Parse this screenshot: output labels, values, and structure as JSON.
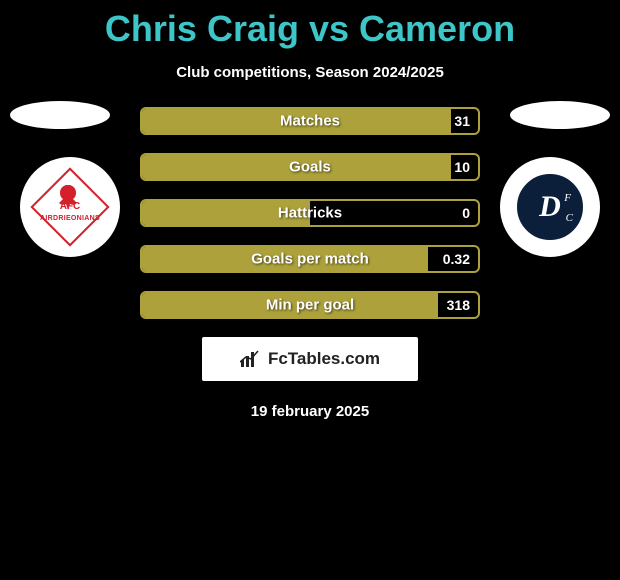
{
  "title": "Chris Craig vs Cameron",
  "subtitle": "Club competitions, Season 2024/2025",
  "date": "19 february 2025",
  "watermark": "FcTables.com",
  "colors": {
    "title": "#3ec5c7",
    "bar_fill": "#aca13a",
    "bar_border": "#aca13a",
    "background": "#000000",
    "text": "#ffffff",
    "badge_left_accent": "#d4202a",
    "badge_right_bg": "#0b1f3a"
  },
  "typography": {
    "title_fontsize": 36,
    "title_weight": 900,
    "subtitle_fontsize": 15,
    "label_fontsize": 15,
    "value_fontsize": 14
  },
  "layout": {
    "stat_bar_width": 340,
    "stat_bar_height": 28,
    "stat_bar_gap": 18,
    "badge_diameter": 100
  },
  "stats": [
    {
      "label": "Matches",
      "value": "31",
      "fill_pct": 92
    },
    {
      "label": "Goals",
      "value": "10",
      "fill_pct": 92
    },
    {
      "label": "Hattricks",
      "value": "0",
      "fill_pct": 50
    },
    {
      "label": "Goals per match",
      "value": "0.32",
      "fill_pct": 85
    },
    {
      "label": "Min per goal",
      "value": "318",
      "fill_pct": 88
    }
  ],
  "teams": {
    "left": {
      "short": "AFC",
      "name": "AIRDRIEONIANS"
    },
    "right": {
      "short": "D",
      "sub1": "F",
      "sub2": "C"
    }
  }
}
